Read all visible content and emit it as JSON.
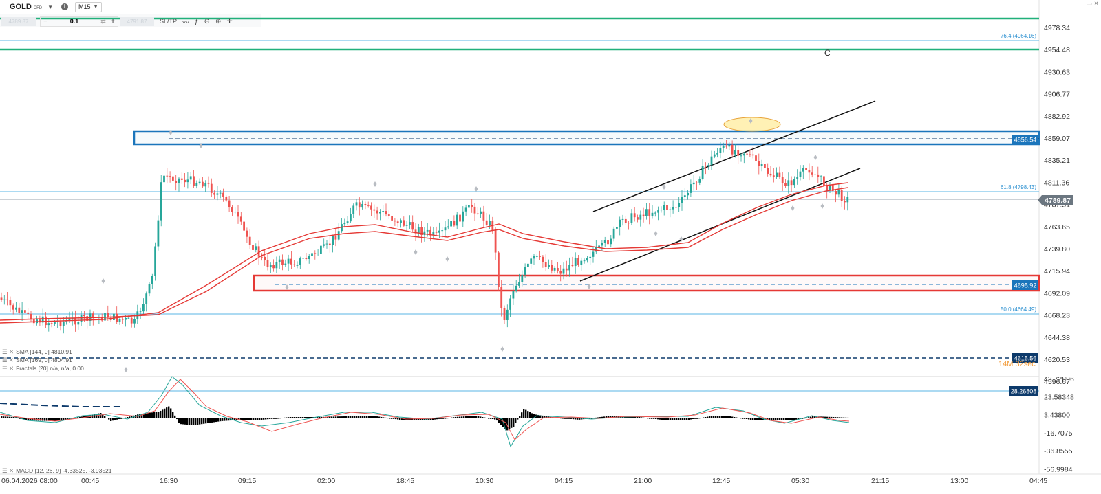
{
  "toolbar": {
    "symbol": "GOLD",
    "symbol_tag": "CFD",
    "timeframe": "M15",
    "sell_price": "4789.87",
    "buy_price": "4791.87",
    "volume": "0.1",
    "sltp_label": "SL/TP",
    "window_controls": "▭ ✕"
  },
  "price_axis": {
    "ticks": [
      "4978.34",
      "4954.48",
      "4930.63",
      "4906.77",
      "4882.92",
      "4859.07",
      "4835.21",
      "4811.36",
      "4787.51",
      "4763.65",
      "4739.80",
      "4715.94",
      "4692.09",
      "4668.23",
      "4644.38",
      "4620.53",
      "4596.67"
    ]
  },
  "macd_axis": {
    "ticks": [
      "43.72896",
      "23.58348",
      "3.43800",
      "-16.7075",
      "-36.8555",
      "-56.9984"
    ]
  },
  "time_axis": {
    "labels": [
      "06.04.2026 08:00",
      "00:45",
      "16:30",
      "09:15",
      "02:00",
      "18:45",
      "10:30",
      "04:15",
      "21:00",
      "12:45",
      "05:30",
      "21:15",
      "13:00",
      "04:45"
    ]
  },
  "price_labels": {
    "current": "4789.87",
    "resistance": "4856.54",
    "support": "4695.92",
    "low_line": "4615.56",
    "macd_level": "28.26808",
    "countdown": "14M 32sec"
  },
  "fib_labels": {
    "f764": "76.4 (4964.16)",
    "f618": "61.8 (4798.43)",
    "f500": "50.0 (4664.49)"
  },
  "wave_label": "C",
  "indicators": [
    {
      "label": "SMA [144, 0] 4810.91"
    },
    {
      "label": "SMA [169, 0] 4804.91"
    },
    {
      "label": "Fractals [20] n/a, n/a, 0.00"
    }
  ],
  "macd_label": "MACD [12, 26, 9] -4.33525, -3.93521",
  "colors": {
    "bull": "#26a69a",
    "bear": "#ef5350",
    "sma": "#e53935",
    "green_line": "#21b07a",
    "blue_line": "#58b4e6",
    "resistance_box": "#1b75bb",
    "support_box": "#e53935",
    "axis_text": "#333333",
    "label_blue": "#1b75bb",
    "label_navy": "#0d3a6b",
    "label_gray": "#6b7680"
  }
}
